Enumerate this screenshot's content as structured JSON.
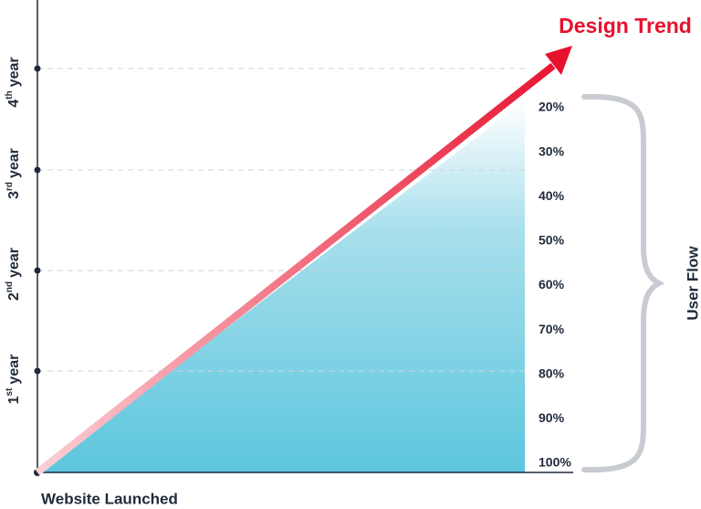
{
  "title": "Design Trend",
  "x_axis_label": "Website Launched",
  "side_label": "User Flow",
  "year_labels": [
    {
      "number": "1",
      "suffix": "st",
      "word": "year"
    },
    {
      "number": "2",
      "suffix": "nd",
      "word": "year"
    },
    {
      "number": "3",
      "suffix": "rd",
      "word": "year"
    },
    {
      "number": "4",
      "suffix": "th",
      "word": "year"
    }
  ],
  "percent_labels": [
    "20%",
    "30%",
    "40%",
    "50%",
    "60%",
    "70%",
    "80%",
    "90%",
    "100%"
  ]
}
